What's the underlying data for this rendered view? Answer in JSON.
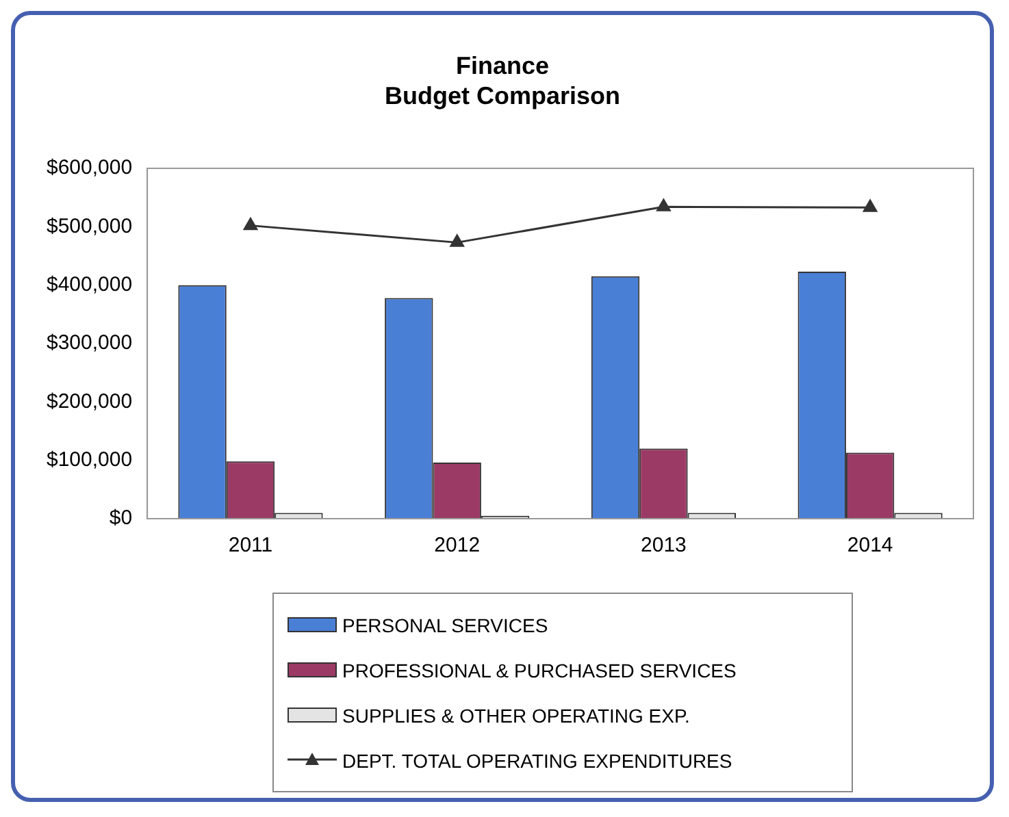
{
  "chart_data": {
    "type": "bar",
    "title": "Finance\nBudget Comparison",
    "categories": [
      "2011",
      "2012",
      "2013",
      "2014"
    ],
    "series": [
      {
        "name": "PERSONAL SERVICES",
        "color": "#4a7fd6",
        "values": [
          400000,
          378000,
          415000,
          423000
        ]
      },
      {
        "name": "PROFESSIONAL & PURCHASED SERVICES",
        "color": "#9c3a66",
        "values": [
          98000,
          96000,
          120000,
          113000
        ]
      },
      {
        "name": "SUPPLIES & OTHER OPERATING EXP.",
        "color": "#e4e4e4",
        "values": [
          10000,
          5000,
          10000,
          10000
        ]
      },
      {
        "name": "DEPT. TOTAL OPERATING EXPENDITURES",
        "type": "line",
        "color": "#333333",
        "values": [
          502000,
          473000,
          534000,
          533000
        ]
      }
    ],
    "ylim": [
      0,
      600000
    ],
    "yticks": [
      {
        "value": 0,
        "label": "$0"
      },
      {
        "value": 100000,
        "label": "$100,000"
      },
      {
        "value": 200000,
        "label": "$200,000"
      },
      {
        "value": 300000,
        "label": "$300,000"
      },
      {
        "value": 400000,
        "label": "$400,000"
      },
      {
        "value": 500000,
        "label": "$500,000"
      },
      {
        "value": 600000,
        "label": "$600,000"
      }
    ],
    "grid": false,
    "legend": "bottom",
    "marker": "triangle",
    "line_style": "solid"
  }
}
